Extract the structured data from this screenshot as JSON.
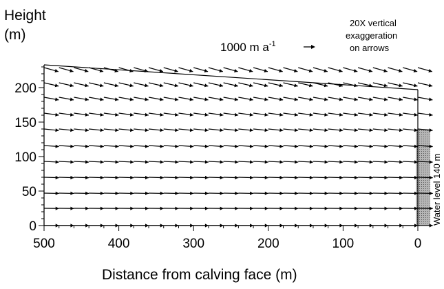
{
  "chart_data": {
    "type": "quiver",
    "title": "",
    "ylabel_line1": "Height",
    "ylabel_line2": "(m)",
    "xlabel": "Distance from calving face (m)",
    "xlim": [
      500,
      0
    ],
    "ylim": [
      0,
      235
    ],
    "x_ticks": [
      500,
      400,
      300,
      200,
      100,
      0
    ],
    "y_ticks": [
      0,
      50,
      100,
      150,
      200
    ],
    "grid": false,
    "surface": {
      "x": [
        500,
        0
      ],
      "y": [
        233,
        197
      ]
    },
    "scale_arrow": {
      "label_main": "1000 m a",
      "label_sup": "-1",
      "value": 1000,
      "unit": "m a-1"
    },
    "vertical_exaggeration_note": [
      "20X vertical",
      "exaggeration",
      "on arrows"
    ],
    "water_level": {
      "value": 140,
      "label": "Water level 140 m"
    },
    "vector_field": {
      "x": [
        500,
        480,
        460,
        440,
        420,
        400,
        380,
        360,
        340,
        320,
        300,
        280,
        260,
        240,
        220,
        200,
        180,
        160,
        140,
        120,
        100,
        80,
        60,
        40,
        20,
        0
      ],
      "rows": [
        {
          "y": 0,
          "dy_per_dx": 0.0
        },
        {
          "y": 25,
          "dy_per_dx": -0.01
        },
        {
          "y": 47,
          "dy_per_dx": -0.02
        },
        {
          "y": 70,
          "dy_per_dx": -0.03
        },
        {
          "y": 93,
          "dy_per_dx": -0.05
        },
        {
          "y": 116,
          "dy_per_dx": -0.07
        },
        {
          "y": 140,
          "dy_per_dx": -0.1
        },
        {
          "y": 163,
          "dy_per_dx": -0.14
        },
        {
          "y": 186,
          "dy_per_dx": -0.18
        },
        {
          "y": 207,
          "dy_per_dx": -0.23
        },
        {
          "y": 229,
          "dy_per_dx": -0.28
        }
      ]
    }
  }
}
